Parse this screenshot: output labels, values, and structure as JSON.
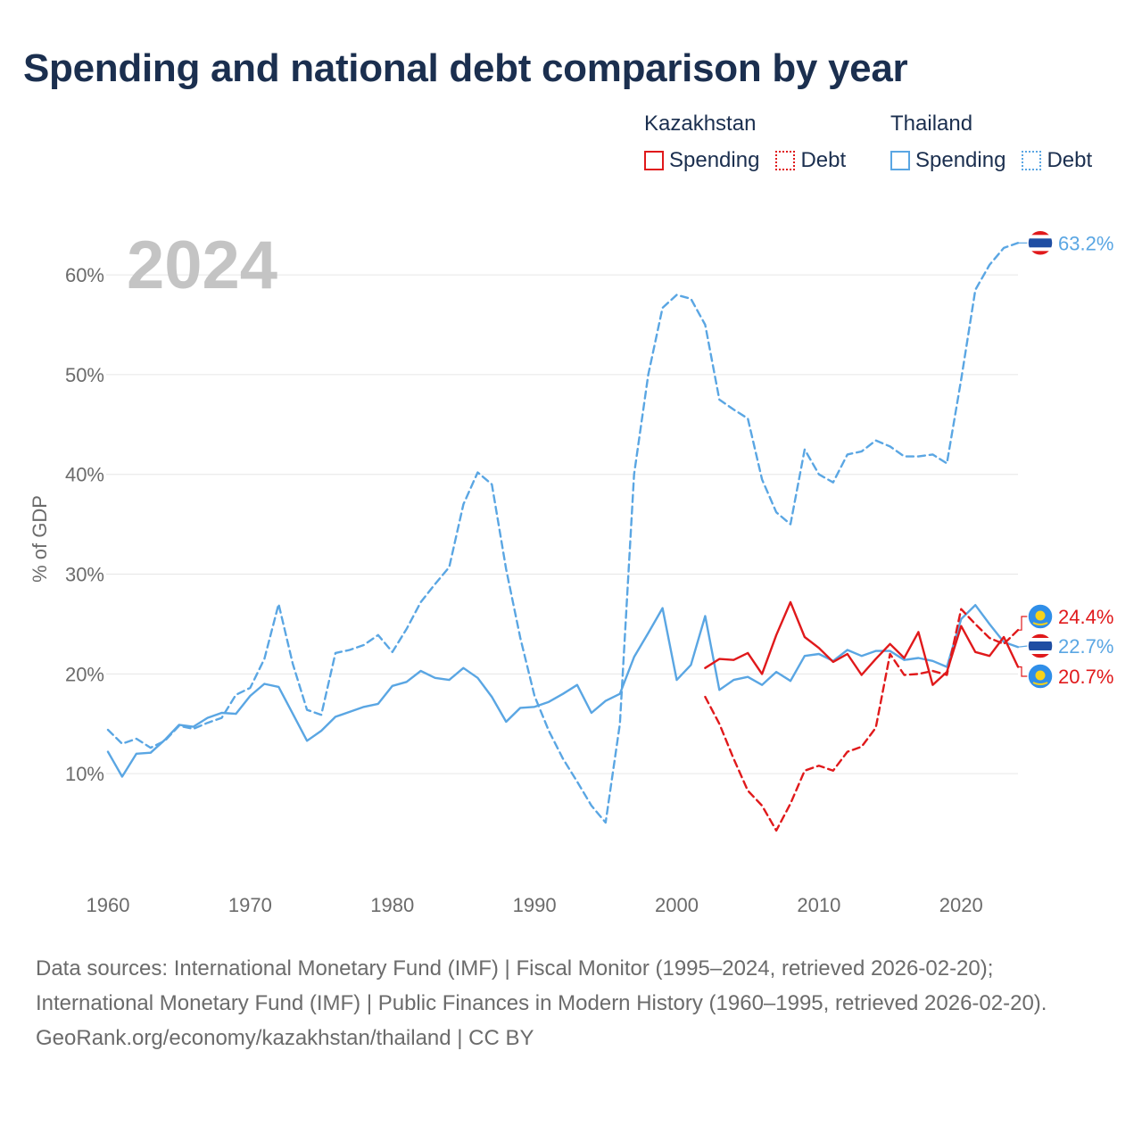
{
  "title": "Spending and national debt comparison by year",
  "year_label": "2024",
  "legend": {
    "kazakhstan": {
      "name": "Kazakhstan",
      "spending": "Spending",
      "debt": "Debt"
    },
    "thailand": {
      "name": "Thailand",
      "spending": "Spending",
      "debt": "Debt"
    }
  },
  "footer": {
    "sources": "Data sources: International Monetary Fund (IMF) | Fiscal Monitor (1995–2024, retrieved 2026-02-20); International Monetary Fund (IMF) | Public Finances in Modern History (1960–1995, retrieved 2026-02-20).",
    "credit": "GeoRank.org/economy/kazakhstan/thailand | CC BY"
  },
  "colors": {
    "kazakhstan": "#e0191b",
    "thailand": "#5aa6e3",
    "title": "#1b2f4f",
    "axis_text": "#6b6b6b",
    "year_watermark": "#c4c4c4"
  },
  "chart_data": {
    "type": "line",
    "title": "Spending and national debt comparison by year",
    "xlabel": "",
    "ylabel": "% of GDP",
    "xlim": [
      1960,
      2024
    ],
    "ylim": [
      0,
      66
    ],
    "x_ticks": [
      1960,
      1970,
      1980,
      1990,
      2000,
      2010,
      2020
    ],
    "y_ticks": [
      10,
      20,
      30,
      40,
      50,
      60
    ],
    "y_tick_labels": [
      "10%",
      "20%",
      "30%",
      "40%",
      "50%",
      "60%"
    ],
    "series": [
      {
        "name": "Thailand Debt",
        "country": "Thailand",
        "metric": "Debt",
        "style": "dashed",
        "color": "#5aa6e3",
        "x": [
          1960,
          1961,
          1962,
          1963,
          1964,
          1965,
          1966,
          1967,
          1968,
          1969,
          1970,
          1971,
          1972,
          1973,
          1974,
          1975,
          1976,
          1977,
          1978,
          1979,
          1980,
          1981,
          1982,
          1983,
          1984,
          1985,
          1986,
          1987,
          1988,
          1989,
          1990,
          1991,
          1992,
          1993,
          1994,
          1995,
          1996,
          1997,
          1998,
          1999,
          2000,
          2001,
          2002,
          2003,
          2004,
          2005,
          2006,
          2007,
          2008,
          2009,
          2010,
          2011,
          2012,
          2013,
          2014,
          2015,
          2016,
          2017,
          2018,
          2019,
          2020,
          2021,
          2022,
          2023,
          2024
        ],
        "values": [
          14.4,
          13.0,
          13.5,
          12.6,
          13.3,
          14.8,
          14.5,
          15.1,
          15.6,
          17.9,
          18.6,
          21.5,
          27.0,
          21.0,
          16.4,
          15.9,
          22.1,
          22.4,
          22.9,
          23.9,
          22.2,
          24.5,
          27.2,
          29.0,
          30.7,
          37.0,
          40.2,
          39.0,
          30.5,
          23.6,
          17.8,
          14.3,
          11.5,
          9.2,
          6.8,
          5.1,
          15.0,
          40.0,
          50.0,
          56.7,
          58.0,
          57.6,
          55.0,
          47.5,
          46.5,
          45.6,
          39.5,
          36.2,
          35.0,
          42.5,
          40.0,
          39.2,
          42.0,
          42.3,
          43.4,
          42.8,
          41.8,
          41.8,
          42.0,
          41.1,
          49.5,
          58.5,
          61.0,
          62.7,
          63.2
        ],
        "end_label": "63.2%"
      },
      {
        "name": "Thailand Spending",
        "country": "Thailand",
        "metric": "Spending",
        "style": "solid",
        "color": "#5aa6e3",
        "x": [
          1960,
          1961,
          1962,
          1963,
          1964,
          1965,
          1966,
          1967,
          1968,
          1969,
          1970,
          1971,
          1972,
          1973,
          1974,
          1975,
          1976,
          1977,
          1978,
          1979,
          1980,
          1981,
          1982,
          1983,
          1984,
          1985,
          1986,
          1987,
          1988,
          1989,
          1990,
          1991,
          1992,
          1993,
          1994,
          1995,
          1996,
          1997,
          1998,
          1999,
          2000,
          2001,
          2002,
          2003,
          2004,
          2005,
          2006,
          2007,
          2008,
          2009,
          2010,
          2011,
          2012,
          2013,
          2014,
          2015,
          2016,
          2017,
          2018,
          2019,
          2020,
          2021,
          2022,
          2023,
          2024
        ],
        "values": [
          12.2,
          9.7,
          12.0,
          12.1,
          13.4,
          14.9,
          14.7,
          15.6,
          16.1,
          16.0,
          17.8,
          19.0,
          18.7,
          16.0,
          13.3,
          14.3,
          15.7,
          16.2,
          16.7,
          17.0,
          18.8,
          19.2,
          20.3,
          19.6,
          19.4,
          20.6,
          19.6,
          17.7,
          15.2,
          16.6,
          16.7,
          17.2,
          18.0,
          18.9,
          16.1,
          17.3,
          18.0,
          21.7,
          24.1,
          26.6,
          19.4,
          20.9,
          25.8,
          18.4,
          19.4,
          19.7,
          18.9,
          20.2,
          19.3,
          21.8,
          22.0,
          21.3,
          22.4,
          21.8,
          22.3,
          22.3,
          21.4,
          21.6,
          21.3,
          20.7,
          25.5,
          26.9,
          25.0,
          23.2,
          22.7
        ],
        "end_label": "22.7%"
      },
      {
        "name": "Kazakhstan Debt",
        "country": "Kazakhstan",
        "metric": "Debt",
        "style": "dashed",
        "color": "#e0191b",
        "x": [
          2002,
          2003,
          2004,
          2005,
          2006,
          2007,
          2008,
          2009,
          2010,
          2011,
          2012,
          2013,
          2014,
          2015,
          2016,
          2017,
          2018,
          2019,
          2020,
          2021,
          2022,
          2023,
          2024
        ],
        "values": [
          17.7,
          15.0,
          11.5,
          8.3,
          6.8,
          4.3,
          7.0,
          10.3,
          10.8,
          10.3,
          12.2,
          12.7,
          14.6,
          22.0,
          19.9,
          20.0,
          20.3,
          19.9,
          26.5,
          25.0,
          23.6,
          23.0,
          24.4
        ],
        "end_label": "24.4%"
      },
      {
        "name": "Kazakhstan Spending",
        "country": "Kazakhstan",
        "metric": "Spending",
        "style": "solid",
        "color": "#e0191b",
        "x": [
          2002,
          2003,
          2004,
          2005,
          2006,
          2007,
          2008,
          2009,
          2010,
          2011,
          2012,
          2013,
          2014,
          2015,
          2016,
          2017,
          2018,
          2019,
          2020,
          2021,
          2022,
          2023,
          2024
        ],
        "values": [
          20.6,
          21.5,
          21.4,
          22.1,
          20.0,
          23.9,
          27.2,
          23.7,
          22.6,
          21.2,
          22.0,
          19.9,
          21.5,
          23.0,
          21.6,
          24.2,
          18.9,
          20.2,
          24.8,
          22.2,
          21.8,
          23.7,
          20.7
        ],
        "end_label": "20.7%"
      }
    ]
  }
}
